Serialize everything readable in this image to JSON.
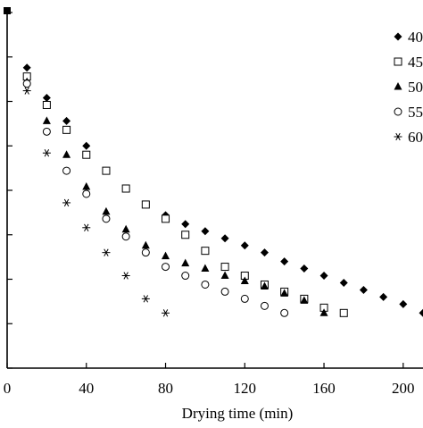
{
  "chart_data": {
    "type": "scatter",
    "title": "",
    "xlabel": "Drying time (min)",
    "ylabel": "",
    "xlim": [
      0,
      210
    ],
    "ylim": [
      0,
      1
    ],
    "x_ticks": [
      0,
      40,
      80,
      120,
      160,
      200
    ],
    "y_ticks": [
      0,
      0.125,
      0.25,
      0.375,
      0.5,
      0.625,
      0.75,
      0.875,
      1.0
    ],
    "grid": false,
    "legend_position": "top-right, cut off at the right edge",
    "series": [
      {
        "name": "40",
        "marker": "diamond",
        "x": [
          10,
          20,
          30,
          40,
          50,
          60,
          70,
          80,
          90,
          100,
          110,
          120,
          130,
          140,
          150,
          160,
          170,
          180,
          190,
          200,
          210
        ],
        "y": [
          0.845,
          0.76,
          0.695,
          0.625,
          0.555,
          0.505,
          0.46,
          0.43,
          0.405,
          0.385,
          0.365,
          0.345,
          0.325,
          0.3,
          0.28,
          0.26,
          0.24,
          0.22,
          0.2,
          0.18,
          0.155
        ]
      },
      {
        "name": "45",
        "marker": "square-open",
        "x": [
          10,
          20,
          30,
          40,
          50,
          60,
          70,
          80,
          90,
          100,
          110,
          120,
          130,
          140,
          150,
          160,
          170
        ],
        "y": [
          0.82,
          0.74,
          0.67,
          0.6,
          0.555,
          0.505,
          0.46,
          0.42,
          0.375,
          0.33,
          0.285,
          0.26,
          0.235,
          0.215,
          0.195,
          0.17,
          0.155
        ]
      },
      {
        "name": "50",
        "marker": "triangle",
        "x": [
          10,
          20,
          30,
          40,
          50,
          60,
          70,
          80,
          90,
          100,
          110,
          120,
          130,
          140,
          150,
          160
        ],
        "y": [
          0.805,
          0.695,
          0.6,
          0.51,
          0.44,
          0.39,
          0.345,
          0.315,
          0.295,
          0.28,
          0.26,
          0.245,
          0.23,
          0.21,
          0.19,
          0.155
        ]
      },
      {
        "name": "55",
        "marker": "circle-open",
        "x": [
          10,
          20,
          30,
          40,
          50,
          60,
          70,
          80,
          90,
          100,
          110,
          120,
          130,
          140
        ],
        "y": [
          0.8,
          0.665,
          0.555,
          0.49,
          0.42,
          0.37,
          0.325,
          0.285,
          0.26,
          0.235,
          0.215,
          0.195,
          0.175,
          0.155
        ]
      },
      {
        "name": "60",
        "marker": "asterisk",
        "x": [
          10,
          20,
          30,
          40,
          50,
          60,
          70,
          80
        ],
        "y": [
          0.78,
          0.605,
          0.465,
          0.395,
          0.325,
          0.26,
          0.195,
          0.155
        ]
      }
    ]
  }
}
